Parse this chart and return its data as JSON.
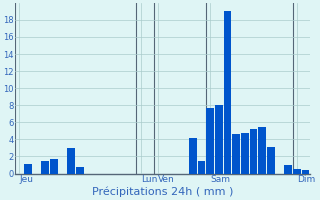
{
  "title": "Précipitations 24h ( mm )",
  "bar_color": "#0055cc",
  "bg_color": "#dff5f5",
  "grid_color": "#aacccc",
  "tick_label_color": "#3366bb",
  "ylim": [
    0,
    20
  ],
  "yticks": [
    0,
    2,
    4,
    6,
    8,
    10,
    12,
    14,
    16,
    18
  ],
  "values": [
    0,
    1.1,
    0,
    1.5,
    1.7,
    0,
    3.0,
    0.8,
    0,
    0,
    0,
    0,
    0,
    0,
    0,
    0,
    0,
    0,
    0,
    0,
    4.2,
    1.5,
    7.7,
    8.0,
    19.0,
    4.6,
    4.7,
    5.2,
    5.5,
    3.1,
    0,
    1.0,
    0.5,
    0.4
  ],
  "day_labels": [
    "Jeu",
    "Lun",
    "Ven",
    "Sam",
    "Dim"
  ],
  "day_tick_positions": [
    0,
    14,
    16,
    22,
    32
  ],
  "vline_positions": [
    0,
    14,
    16,
    22,
    32
  ]
}
